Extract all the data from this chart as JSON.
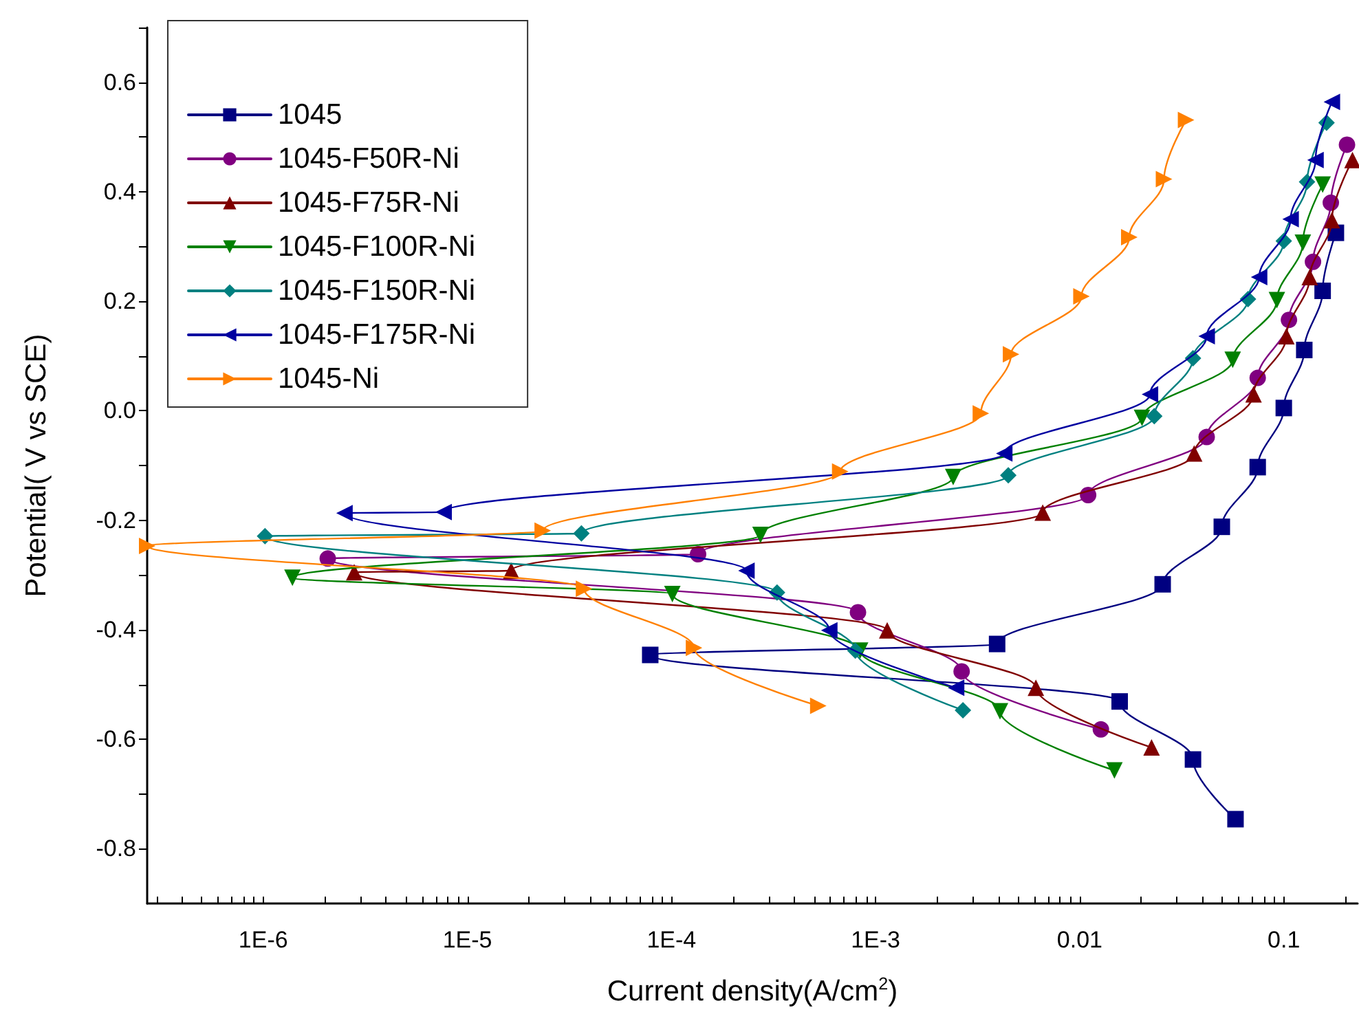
{
  "chart_data": {
    "type": "line",
    "xlabel": "Current density(A/cm$^{2}$)",
    "ylabel": "Potential( V vs SCE)",
    "log": "x",
    "xlim": [
      2.7e-07,
      0.23
    ],
    "ylim": [
      -0.9,
      0.7
    ],
    "xticks": [
      {
        "value": 1e-06,
        "label": "1E-6"
      },
      {
        "value": 1e-05,
        "label": "1E-5"
      },
      {
        "value": 0.0001,
        "label": "1E-4"
      },
      {
        "value": 0.001,
        "label": "1E-3"
      },
      0.01,
      0.1
    ],
    "yticks": [
      -0.8,
      -0.6,
      -0.4,
      -0.2,
      {
        "value": 0,
        "label": "0.0"
      },
      0.2,
      0.4,
      0.6
    ],
    "grid": false,
    "legend": "top left",
    "line_style": "solid",
    "series": [
      {
        "name": "1045",
        "color": "#000080",
        "marker": "square",
        "x": [
          0.058,
          0.0359,
          0.0157,
          7.87e-05,
          0.00394,
          0.0255,
          0.0497,
          0.0745,
          0.1,
          0.126,
          0.155,
          0.18
        ],
        "values": [
          -0.746,
          -0.637,
          -0.531,
          -0.446,
          -0.426,
          -0.317,
          -0.212,
          -0.103,
          0.005,
          0.111,
          0.219,
          0.325
        ]
      },
      {
        "name": "1045-F50R-Ni",
        "color": "#800080",
        "marker": "circle",
        "x": [
          0.0127,
          0.00264,
          0.00082,
          2.07e-06,
          0.000135,
          0.011,
          0.0419,
          0.0745,
          0.106,
          0.139,
          0.17,
          0.204
        ],
        "values": [
          -0.582,
          -0.476,
          -0.368,
          -0.27,
          -0.262,
          -0.154,
          -0.048,
          0.06,
          0.166,
          0.272,
          0.38,
          0.486
        ]
      },
      {
        "name": "1045-F75R-Ni",
        "color": "#800000",
        "marker": "triangle",
        "x": [
          0.0225,
          0.0061,
          0.00114,
          2.79e-06,
          1.64e-05,
          0.00659,
          0.0364,
          0.0711,
          0.103,
          0.134,
          0.172,
          0.217
        ],
        "values": [
          -0.615,
          -0.506,
          -0.401,
          -0.295,
          -0.292,
          -0.186,
          -0.078,
          0.03,
          0.136,
          0.244,
          0.348,
          0.458
        ]
      },
      {
        "name": "1045-F100R-Ni",
        "color": "#008000",
        "marker": "triangle-down",
        "x": [
          0.0148,
          0.00407,
          0.00084,
          0.000101,
          1.39e-06,
          0.000273,
          0.0024,
          0.0202,
          0.0562,
          0.0925,
          0.124,
          0.155
        ],
        "values": [
          -0.657,
          -0.549,
          -0.438,
          -0.335,
          -0.305,
          -0.227,
          -0.121,
          -0.013,
          0.093,
          0.202,
          0.307,
          0.413
        ]
      },
      {
        "name": "1045-F150R-Ni",
        "color": "#008080",
        "marker": "diamond",
        "x": [
          0.00268,
          0.000796,
          0.000329,
          1.02e-06,
          3.62e-05,
          0.00447,
          0.0232,
          0.0359,
          0.0668,
          0.1,
          0.13,
          0.162
        ],
        "values": [
          -0.547,
          -0.438,
          -0.332,
          -0.229,
          -0.224,
          -0.118,
          -0.01,
          0.096,
          0.204,
          0.31,
          0.418,
          0.526
        ]
      },
      {
        "name": "1045-F175R-Ni",
        "color": "#0000a0",
        "marker": "triangle-left",
        "x": [
          0.00248,
          0.000593,
          0.000233,
          2.5e-06,
          7.65e-06,
          0.00427,
          0.0221,
          0.0419,
          0.0757,
          0.108,
          0.143,
          0.172
        ],
        "values": [
          -0.506,
          -0.401,
          -0.292,
          -0.187,
          -0.185,
          -0.078,
          0.03,
          0.136,
          0.244,
          0.35,
          0.458,
          0.564
        ]
      },
      {
        "name": "1045-Ni",
        "color": "#ff8000",
        "marker": "triangle-right",
        "x": [
          0.000524,
          0.000129,
          3.73e-05,
          2.7e-07,
          2.34e-05,
          0.000671,
          0.00328,
          0.00461,
          0.0102,
          0.0175,
          0.0259,
          0.0332
        ],
        "values": [
          -0.539,
          -0.433,
          -0.325,
          -0.247,
          -0.219,
          -0.111,
          -0.005,
          0.103,
          0.209,
          0.317,
          0.423,
          0.531
        ]
      }
    ]
  }
}
